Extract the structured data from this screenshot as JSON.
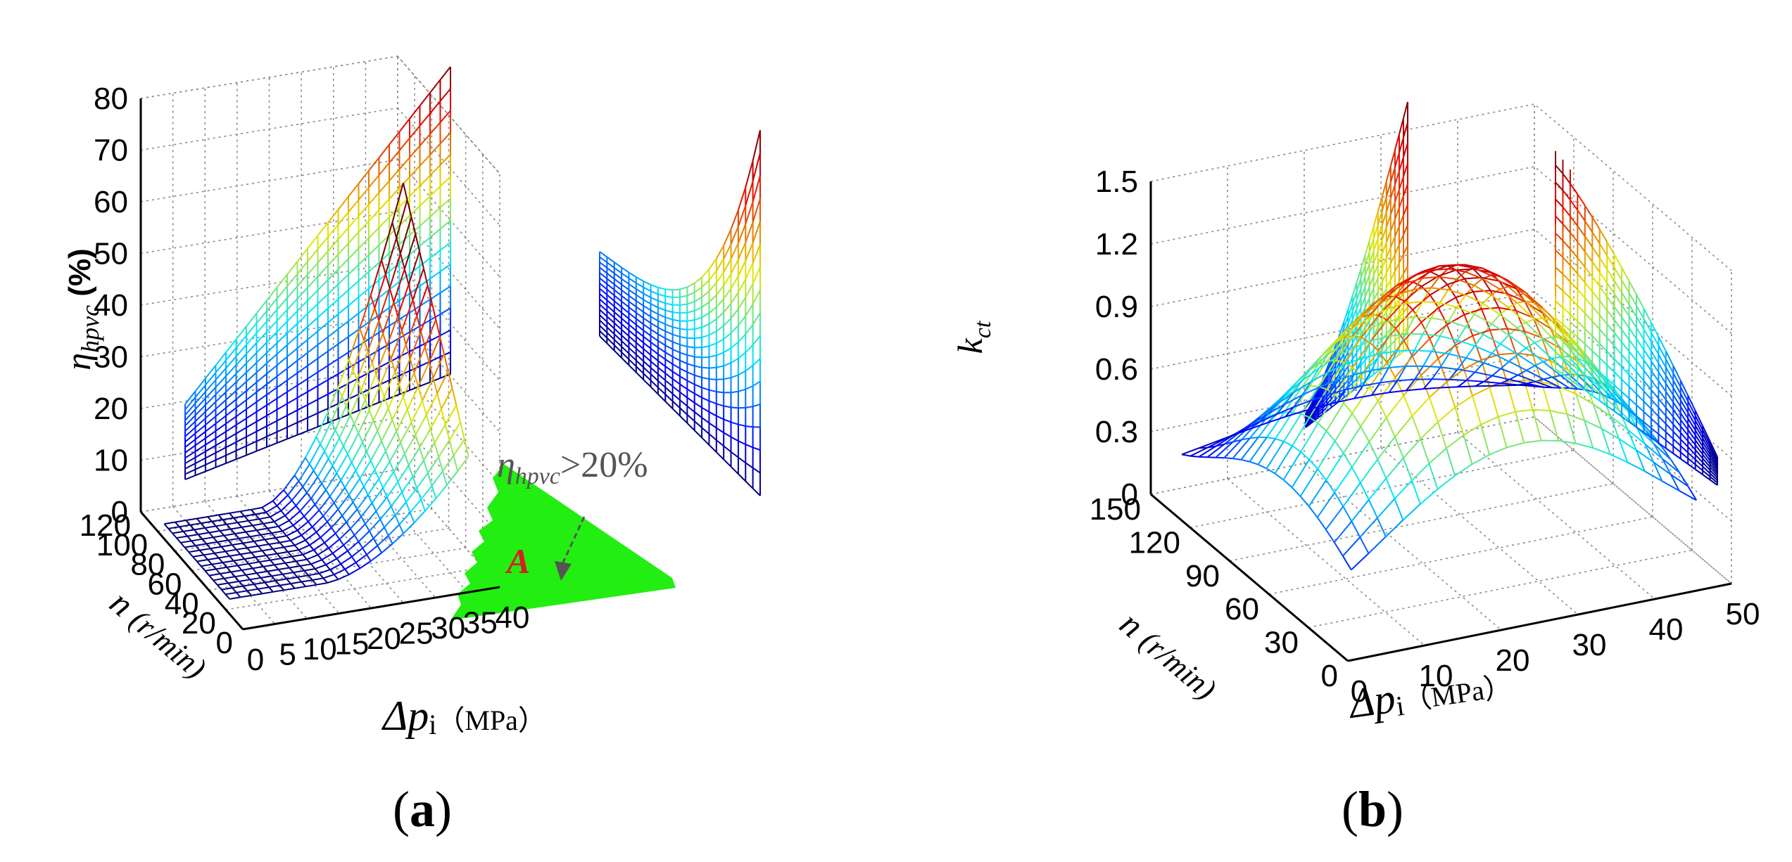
{
  "figure": {
    "captions": [
      "(a)",
      "(b)"
    ],
    "caption_bold_letters": [
      "a",
      "b"
    ]
  },
  "chart_data": [
    {
      "type": "surface3d",
      "panel": "(a)",
      "zlabel": "η_hpvc (%)",
      "zlabel_parts": {
        "sym": "η",
        "sub": "hpvc",
        "unit": "(%)"
      },
      "ylabel": "n (r/min)",
      "ylabel_parts": {
        "sym": "n",
        "unit": "(r/min)"
      },
      "xlabel": "Δp_i (MPa)",
      "xlabel_parts": {
        "sym": "Δp",
        "sub": "i",
        "unit": "（MPa）"
      },
      "z_ticks": [
        "0",
        "10",
        "20",
        "30",
        "40",
        "50",
        "60",
        "70",
        "80"
      ],
      "y_ticks": [
        "120",
        "100",
        "80",
        "60",
        "40",
        "20",
        "0"
      ],
      "x_ticks": [
        "0",
        "5",
        "10",
        "15",
        "20",
        "25",
        "30",
        "35",
        "40"
      ],
      "zlim": [
        0,
        80
      ],
      "ylim": [
        0,
        120
      ],
      "xlim": [
        0,
        40
      ],
      "grid": true,
      "colormap": "jet",
      "annotations": [
        {
          "text_sym": "η",
          "text_sub": "hpvc",
          "text_tail": ">20%",
          "color": "#555555"
        },
        {
          "text": "A",
          "color": "#d42020"
        }
      ],
      "region_color": "#22ee11"
    },
    {
      "type": "surface3d",
      "panel": "(b)",
      "zlabel": "k_ct",
      "zlabel_parts": {
        "sym": "k",
        "sub": "ct"
      },
      "ylabel": "n (r/min)",
      "ylabel_parts": {
        "sym": "n",
        "unit": "(r/min)"
      },
      "xlabel": "Δp_i (MPa)",
      "xlabel_parts": {
        "sym": "Δp",
        "sub": "i",
        "unit": "（MPa）"
      },
      "z_ticks": [
        "0",
        "0.3",
        "0.6",
        "0.9",
        "1.2",
        "1.5"
      ],
      "y_ticks": [
        "150",
        "120",
        "90",
        "60",
        "30",
        "0"
      ],
      "x_ticks": [
        "0",
        "10",
        "20",
        "30",
        "40",
        "50"
      ],
      "zlim": [
        0,
        1.5
      ],
      "ylim": [
        0,
        150
      ],
      "xlim": [
        0,
        50
      ],
      "grid": true,
      "colormap": "jet"
    }
  ]
}
